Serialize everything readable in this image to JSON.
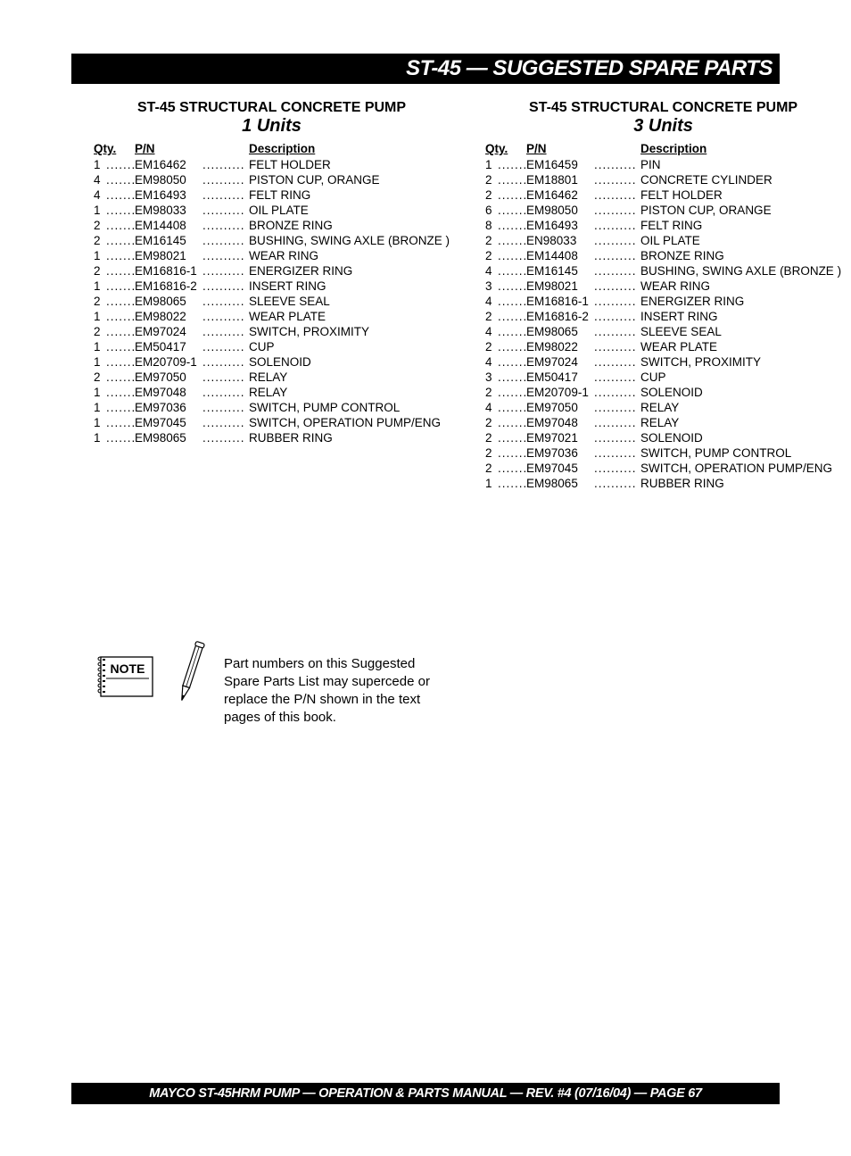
{
  "title_bar": "ST-45 — SUGGESTED SPARE PARTS",
  "footer_bar": "MAYCO ST-45HRM PUMP — OPERATION & PARTS MANUAL — REV. #4 (07/16/04) — PAGE 67",
  "dot_fill": "..........",
  "headers": {
    "qty": "Qty.",
    "pn": "P/N",
    "desc": "Description"
  },
  "left": {
    "heading": "ST-45 STRUCTURAL CONCRETE PUMP",
    "subhead": "1 Units",
    "rows": [
      {
        "qty": "1",
        "pn": "EM16462",
        "desc": "FELT HOLDER"
      },
      {
        "qty": "4",
        "pn": "EM98050",
        "desc": "PISTON CUP, ORANGE"
      },
      {
        "qty": "4",
        "pn": "EM16493",
        "desc": "FELT RING"
      },
      {
        "qty": "1",
        "pn": "EM98033",
        "desc": "OIL PLATE"
      },
      {
        "qty": "2",
        "pn": "EM14408",
        "desc": "BRONZE RING"
      },
      {
        "qty": "2",
        "pn": "EM16145",
        "desc": "BUSHING, SWING AXLE (BRONZE )"
      },
      {
        "qty": "1",
        "pn": "EM98021",
        "desc": "WEAR RING"
      },
      {
        "qty": "2",
        "pn": "EM16816-1",
        "desc": "ENERGIZER RING"
      },
      {
        "qty": "1",
        "pn": "EM16816-2",
        "desc": "INSERT RING"
      },
      {
        "qty": "2",
        "pn": "EM98065",
        "desc": "SLEEVE SEAL"
      },
      {
        "qty": "1",
        "pn": "EM98022",
        "desc": "WEAR PLATE"
      },
      {
        "qty": "2",
        "pn": "EM97024",
        "desc": "SWITCH, PROXIMITY"
      },
      {
        "qty": "1",
        "pn": "EM50417",
        "desc": "CUP"
      },
      {
        "qty": "1",
        "pn": "EM20709-1",
        "desc": "SOLENOID"
      },
      {
        "qty": "2",
        "pn": "EM97050",
        "desc": "RELAY"
      },
      {
        "qty": "1",
        "pn": "EM97048",
        "desc": "RELAY"
      },
      {
        "qty": "1",
        "pn": "EM97036",
        "desc": "SWITCH, PUMP CONTROL"
      },
      {
        "qty": "1",
        "pn": "EM97045",
        "desc": "SWITCH, OPERATION PUMP/ENG"
      },
      {
        "qty": "1",
        "pn": "EM98065",
        "desc": "RUBBER RING"
      }
    ]
  },
  "right": {
    "heading": "ST-45 STRUCTURAL CONCRETE PUMP",
    "subhead": "3 Units",
    "rows": [
      {
        "qty": "1",
        "pn": "EM16459",
        "desc": "PIN"
      },
      {
        "qty": "2",
        "pn": "EM18801",
        "desc": "CONCRETE CYLINDER"
      },
      {
        "qty": "2",
        "pn": "EM16462",
        "desc": "FELT HOLDER"
      },
      {
        "qty": "6",
        "pn": "EM98050",
        "desc": "PISTON CUP, ORANGE"
      },
      {
        "qty": "8",
        "pn": "EM16493",
        "desc": "FELT RING"
      },
      {
        "qty": "2",
        "pn": "EN98033",
        "desc": "OIL PLATE"
      },
      {
        "qty": "2",
        "pn": "EM14408",
        "desc": "BRONZE RING"
      },
      {
        "qty": "4",
        "pn": "EM16145",
        "desc": "BUSHING, SWING AXLE (BRONZE )"
      },
      {
        "qty": "3",
        "pn": "EM98021",
        "desc": "WEAR RING"
      },
      {
        "qty": "4",
        "pn": "EM16816-1",
        "desc": "ENERGIZER RING"
      },
      {
        "qty": "2",
        "pn": "EM16816-2",
        "desc": "INSERT RING"
      },
      {
        "qty": "4",
        "pn": "EM98065",
        "desc": "SLEEVE SEAL"
      },
      {
        "qty": "2",
        "pn": "EM98022",
        "desc": "WEAR PLATE"
      },
      {
        "qty": "4",
        "pn": "EM97024",
        "desc": "SWITCH, PROXIMITY"
      },
      {
        "qty": "3",
        "pn": "EM50417",
        "desc": "CUP"
      },
      {
        "qty": "2",
        "pn": "EM20709-1",
        "desc": "SOLENOID"
      },
      {
        "qty": "4",
        "pn": "EM97050",
        "desc": "RELAY"
      },
      {
        "qty": "2",
        "pn": "EM97048",
        "desc": "RELAY"
      },
      {
        "qty": "2",
        "pn": "EM97021",
        "desc": "SOLENOID"
      },
      {
        "qty": "2",
        "pn": "EM97036",
        "desc": "SWITCH, PUMP CONTROL"
      },
      {
        "qty": "2",
        "pn": "EM97045",
        "desc": "SWITCH, OPERATION PUMP/ENG"
      },
      {
        "qty": "1",
        "pn": "EM98065",
        "desc": "RUBBER RING"
      }
    ]
  },
  "note": {
    "label": "NOTE",
    "text": "Part numbers on this Suggested Spare Parts List may supercede or replace the P/N shown in the text pages of this book."
  }
}
